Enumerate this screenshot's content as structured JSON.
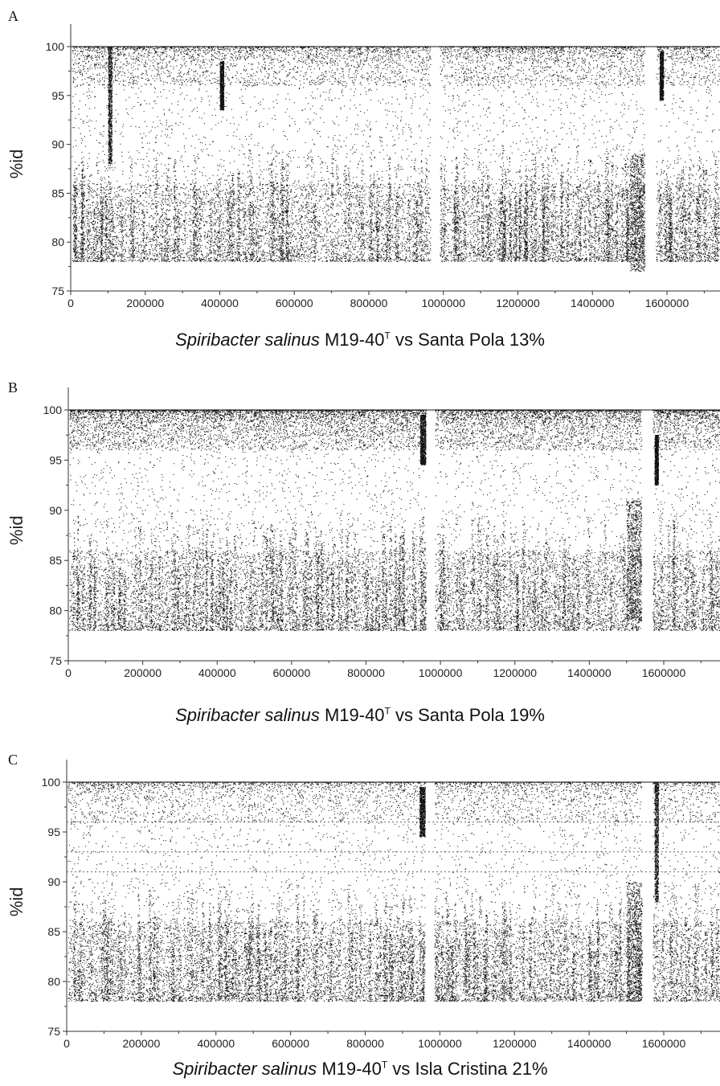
{
  "chart_data": [
    {
      "panel": "A",
      "type": "scatter",
      "title_species": "Spiribacter salinus",
      "title_strain": "M19-40",
      "title_superscript": "T",
      "title_rest": "vs Santa Pola 13%",
      "ylabel": "%id",
      "xlabel": "",
      "xlim": [
        0,
        1750000
      ],
      "ylim": [
        75,
        102
      ],
      "xticks": [
        0,
        200000,
        400000,
        600000,
        800000,
        1000000,
        1200000,
        1400000,
        1600000
      ],
      "yticks": [
        75,
        80,
        85,
        90,
        95,
        100
      ],
      "gaps": [
        [
          965000,
          990000
        ],
        [
          1540000,
          1570000
        ]
      ],
      "hotspots": [
        [
          1500000,
          1540000,
          83
        ],
        [
          1580000,
          1590000,
          97
        ],
        [
          400000,
          410000,
          96
        ],
        [
          100000,
          110000,
          94
        ]
      ]
    },
    {
      "panel": "B",
      "type": "scatter",
      "title_species": "Spiribacter salinus",
      "title_strain": "M19-40",
      "title_superscript": "T",
      "title_rest": "vs Santa Pola 19%",
      "ylabel": "%id",
      "xlabel": "",
      "xlim": [
        0,
        1750000
      ],
      "ylim": [
        75,
        102
      ],
      "xticks": [
        0,
        200000,
        400000,
        600000,
        800000,
        1000000,
        1200000,
        1400000,
        1600000
      ],
      "yticks": [
        75,
        80,
        85,
        90,
        95,
        100
      ],
      "gaps": [
        [
          960000,
          985000
        ],
        [
          1540000,
          1570000
        ]
      ],
      "hotspots": [
        [
          945000,
          960000,
          97
        ],
        [
          1500000,
          1540000,
          85
        ],
        [
          1575000,
          1585000,
          95
        ]
      ]
    },
    {
      "panel": "C",
      "type": "scatter",
      "title_species": "Spiribacter salinus",
      "title_strain": "M19-40",
      "title_superscript": "T",
      "title_rest": "vs Isla Cristina 21%",
      "ylabel": "%id",
      "xlabel": "",
      "xlim": [
        0,
        1750000
      ],
      "ylim": [
        75,
        102
      ],
      "xticks": [
        0,
        200000,
        400000,
        600000,
        800000,
        1000000,
        1200000,
        1400000,
        1600000
      ],
      "yticks": [
        75,
        80,
        85,
        90,
        95,
        100
      ],
      "gaps": [
        [
          960000,
          985000
        ],
        [
          1540000,
          1570000
        ]
      ],
      "hotspots": [
        [
          945000,
          960000,
          97
        ],
        [
          1500000,
          1540000,
          84
        ],
        [
          1575000,
          1585000,
          94
        ]
      ],
      "dashed_lines": [
        96,
        93,
        91
      ]
    }
  ]
}
